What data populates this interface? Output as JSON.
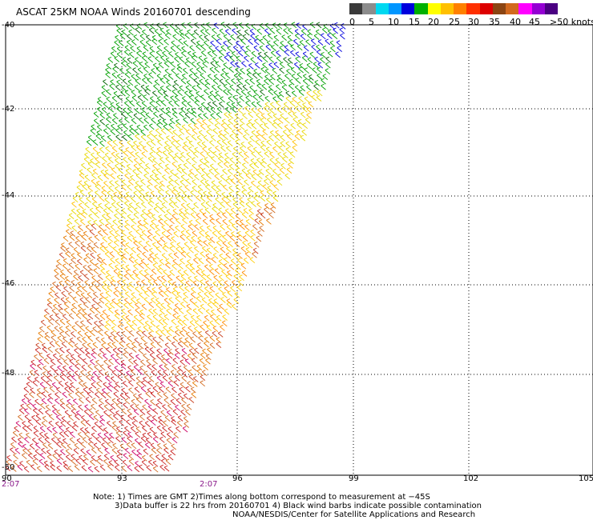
{
  "title": "ASCAT 25KM NOAA Winds 20160701 descending",
  "legend": {
    "labels": [
      "0",
      "5",
      "10",
      "15",
      "20",
      "25",
      "30",
      "35",
      "40",
      "45",
      ">50 knots"
    ],
    "colors": [
      "#3a3a3a",
      "#8c8c8c",
      "#00d8f0",
      "#0096ff",
      "#0000dd",
      "#00b000",
      "#ffff00",
      "#ffc000",
      "#ff8000",
      "#ff3000",
      "#dd0000",
      "#8b4513",
      "#d2691e",
      "#ff00ff",
      "#9400d3",
      "#4b0082"
    ]
  },
  "lat_labels": [
    "-40",
    "-42",
    "-44",
    "-46",
    "-48",
    "-50"
  ],
  "lon_labels": [
    "90",
    "93",
    "96",
    "99",
    "102",
    "105"
  ],
  "time_labels": [
    "2:07",
    "2:07"
  ],
  "notes": {
    "line1": "Note: 1) Times are GMT 2)Times along bottom correspond to measurement at −45S",
    "line2": "3)Data buffer is 22 hrs from 20160701 4) Black wind barbs indicate possible contamination",
    "line3": "NOAA/NESDIS/Center for Satellite Applications and Research"
  }
}
